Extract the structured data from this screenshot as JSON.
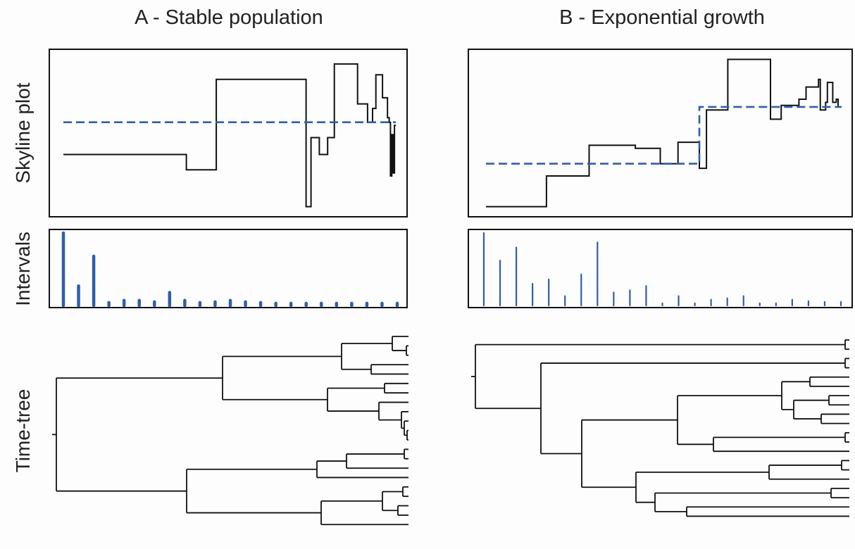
{
  "colors": {
    "line": "#111111",
    "accent": "#2e5fa8",
    "background": "#fdfdfd"
  },
  "chart_data": [
    {
      "type": "line",
      "panel": "A",
      "column_title": "A - Stable population",
      "row_label": "Skyline plot",
      "axes_visible": false,
      "series": [
        {
          "step_x": [
            0,
            0.37,
            0.46,
            0.73,
            0.745,
            0.77,
            0.795,
            0.815,
            0.885,
            0.915,
            0.93,
            0.94,
            0.96,
            0.975,
            0.98,
            0.984,
            0.988,
            0.992,
            0.996,
            1.0
          ],
          "step_y": [
            0.36,
            0.26,
            0.85,
            0.02,
            0.47,
            0.36,
            0.47,
            0.95,
            0.69,
            0.57,
            0.66,
            0.88,
            0.73,
            0.6,
            0.57,
            0.22,
            0.49,
            0.24,
            0.55,
            0.55
          ]
        },
        {
          "x": [
            0,
            1
          ],
          "y": [
            0.57,
            0.57
          ]
        }
      ]
    },
    {
      "type": "bar",
      "panel": "A",
      "row_label": "Intervals",
      "values": [
        1.0,
        0.27,
        0.68,
        0.04,
        0.07,
        0.07,
        0.05,
        0.18,
        0.07,
        0.04,
        0.05,
        0.07,
        0.05,
        0.04,
        0.03,
        0.03,
        0.03,
        0.03,
        0.03,
        0.03,
        0.03,
        0.03,
        0.03
      ]
    },
    {
      "type": "tree",
      "panel": "A",
      "row_label": "Time-tree",
      "tips": 23
    },
    {
      "type": "line",
      "panel": "B",
      "column_title": "B - Exponential growth",
      "row_label": "",
      "axes_visible": false,
      "series": [
        {
          "step_x": [
            0,
            0.17,
            0.29,
            0.42,
            0.49,
            0.54,
            0.6,
            0.62,
            0.68,
            0.8,
            0.83,
            0.88,
            0.9,
            0.935,
            0.94,
            0.955,
            0.96,
            0.975,
            0.985,
            0.99,
            1.0
          ],
          "step_y": [
            0.02,
            0.22,
            0.42,
            0.4,
            0.3,
            0.44,
            0.27,
            0.65,
            0.98,
            0.59,
            0.68,
            0.72,
            0.8,
            0.85,
            0.65,
            0.7,
            0.83,
            0.7,
            0.72,
            0.67,
            0.67
          ]
        },
        {
          "x": [
            0,
            0.6,
            0.6,
            1
          ],
          "y": [
            0.3,
            0.3,
            0.67,
            0.67
          ]
        }
      ]
    },
    {
      "type": "bar",
      "panel": "B",
      "row_label": "",
      "values": [
        1.0,
        0.62,
        0.8,
        0.3,
        0.36,
        0.13,
        0.43,
        0.87,
        0.18,
        0.21,
        0.27,
        0.03,
        0.13,
        0.03,
        0.08,
        0.1,
        0.13,
        0.03,
        0.03,
        0.08,
        0.06,
        0.05,
        0.05
      ]
    },
    {
      "type": "tree",
      "panel": "B",
      "row_label": "",
      "tips": 23
    }
  ]
}
